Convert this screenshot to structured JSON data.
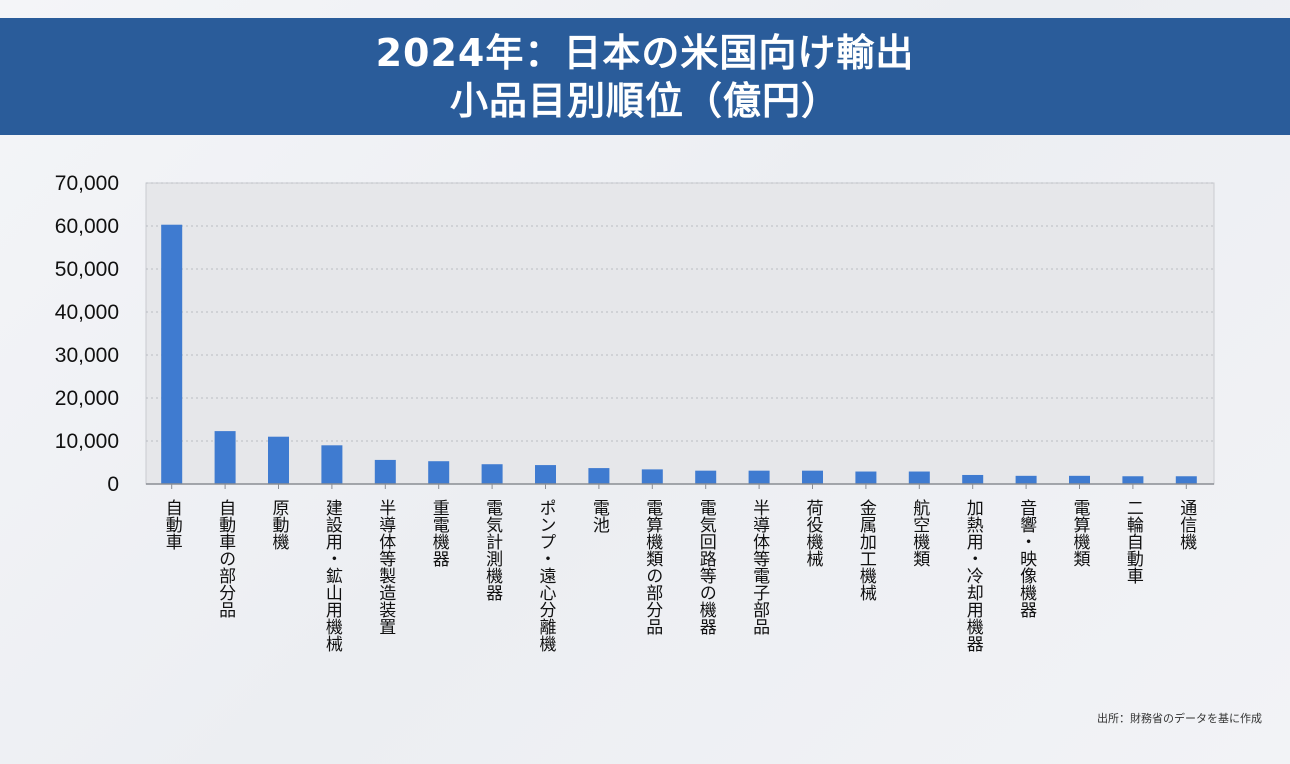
{
  "title": {
    "line1": "2024年：日本の米国向け輸出",
    "line2": "小品目別順位（億円）"
  },
  "source": "出所：財務省のデータを基に作成",
  "colors": {
    "banner": "#2a5c9a",
    "bar": "#3f7bd0",
    "grid": "#b9bcc2",
    "axis": "#8a8d93"
  },
  "chart_data": {
    "type": "bar",
    "title": "2024年：日本の米国向け輸出 小品目別順位（億円）",
    "xlabel": "",
    "ylabel": "",
    "ylim": [
      0,
      70000
    ],
    "yticks": [
      0,
      10000,
      20000,
      30000,
      40000,
      50000,
      60000,
      70000
    ],
    "ytick_labels": [
      "0",
      "10,000",
      "20,000",
      "30,000",
      "40,000",
      "50,000",
      "60,000",
      "70,000"
    ],
    "grid": true,
    "legend": "none",
    "categories": [
      "自動車",
      "自動車の部分品",
      "原動機",
      "建設用・鉱山用機械",
      "半導体等製造装置",
      "重電機器",
      "電気計測機器",
      "ポンプ・遠心分離機",
      "電池",
      "電算機類の部分品",
      "電気回路等の機器",
      "半導体等電子部品",
      "荷役機械",
      "金属加工機械",
      "航空機類",
      "加熱用・冷却用機器",
      "音響・映像機器",
      "電算機類",
      "二輪自動車",
      "通信機"
    ],
    "values": [
      60300,
      12300,
      11000,
      9000,
      5600,
      5300,
      4600,
      4400,
      3700,
      3400,
      3100,
      3100,
      3100,
      2900,
      2900,
      2100,
      1900,
      1900,
      1800,
      1800
    ]
  }
}
